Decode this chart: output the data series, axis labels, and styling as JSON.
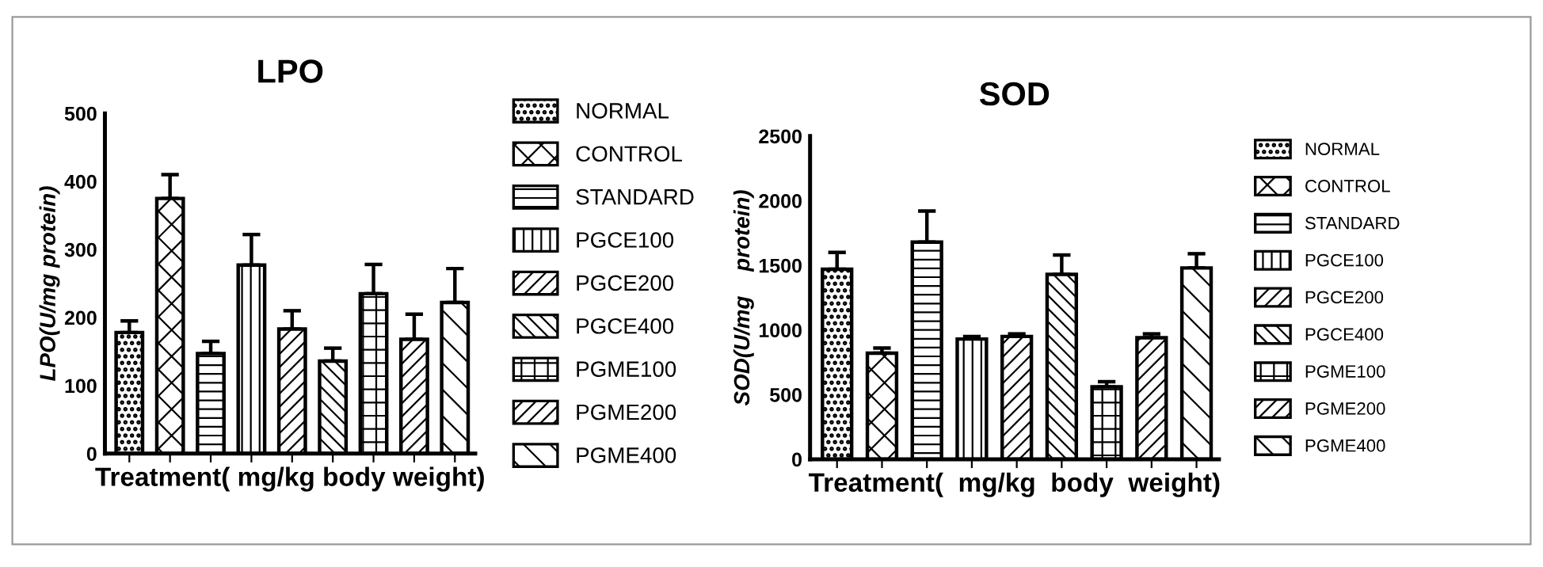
{
  "chart_data": [
    {
      "type": "bar",
      "title": "LPO",
      "xlabel": "Treatment( mg/kg body weight)",
      "ylabel": "LPO(U/mg protein)",
      "categories": [
        null,
        null,
        null,
        null,
        null,
        null,
        null,
        null,
        null
      ],
      "series": [
        {
          "name": "NORMAL",
          "color": "#000000",
          "values": [
            178,
            null,
            null,
            null,
            null,
            null,
            null,
            null,
            null
          ],
          "errors": [
            [
              178,
              195
            ],
            null,
            null,
            null,
            null,
            null,
            null,
            null,
            null
          ]
        },
        {
          "name": "CONTROL",
          "color": "#000000",
          "values": [
            null,
            375,
            null,
            null,
            null,
            null,
            null,
            null,
            null
          ],
          "errors": [
            null,
            [
              375,
              410
            ],
            null,
            null,
            null,
            null,
            null,
            null,
            null
          ]
        },
        {
          "name": "STANDARD",
          "color": "#000000",
          "values": [
            null,
            null,
            147,
            null,
            null,
            null,
            null,
            null,
            null
          ],
          "errors": [
            null,
            null,
            [
              147,
              165
            ],
            null,
            null,
            null,
            null,
            null,
            null
          ]
        },
        {
          "name": "PGCE100",
          "color": "#000000",
          "values": [
            null,
            null,
            null,
            277,
            null,
            null,
            null,
            null,
            null
          ],
          "errors": [
            null,
            null,
            null,
            [
              277,
              322
            ],
            null,
            null,
            null,
            null,
            null
          ]
        },
        {
          "name": "PGCE200",
          "color": "#000000",
          "values": [
            null,
            null,
            null,
            null,
            183,
            null,
            null,
            null,
            null
          ],
          "errors": [
            null,
            null,
            null,
            null,
            [
              183,
              210
            ],
            null,
            null,
            null,
            null
          ]
        },
        {
          "name": "PGCE400",
          "color": "#000000",
          "values": [
            null,
            null,
            null,
            null,
            null,
            136,
            null,
            null,
            null
          ],
          "errors": [
            null,
            null,
            null,
            null,
            null,
            [
              136,
              155
            ],
            null,
            null,
            null
          ]
        },
        {
          "name": "PGME100",
          "color": "#000000",
          "values": [
            null,
            null,
            null,
            null,
            null,
            null,
            235,
            null,
            null
          ],
          "errors": [
            null,
            null,
            null,
            null,
            null,
            null,
            [
              235,
              278
            ],
            null,
            null
          ]
        },
        {
          "name": "PGME200",
          "color": "#000000",
          "values": [
            null,
            null,
            null,
            null,
            null,
            null,
            null,
            168,
            null
          ],
          "errors": [
            null,
            null,
            null,
            null,
            null,
            null,
            null,
            [
              168,
              205
            ],
            null
          ]
        },
        {
          "name": "PGME400",
          "color": "#000000",
          "values": [
            null,
            null,
            null,
            null,
            null,
            null,
            null,
            null,
            222
          ],
          "errors": [
            null,
            null,
            null,
            null,
            null,
            null,
            null,
            null,
            [
              222,
              272
            ]
          ]
        }
      ],
      "ylim": [
        0,
        500
      ],
      "yticks": [
        0,
        100,
        200,
        300,
        400,
        500
      ],
      "grid": false,
      "legend": "right",
      "tick_labels": "y"
    },
    {
      "type": "bar",
      "title": "SOD",
      "xlabel": "Treatment(  mg/kg  body  weight)",
      "ylabel": "SOD(U/mg    protein)",
      "categories": [
        null,
        null,
        null,
        null,
        null,
        null,
        null,
        null,
        null
      ],
      "series": [
        {
          "name": "NORMAL",
          "color": "#000000",
          "values": [
            1470,
            null,
            null,
            null,
            null,
            null,
            null,
            null,
            null
          ],
          "errors": [
            [
              1470,
              1600
            ],
            null,
            null,
            null,
            null,
            null,
            null,
            null,
            null
          ]
        },
        {
          "name": "CONTROL",
          "color": "#000000",
          "values": [
            null,
            820,
            null,
            null,
            null,
            null,
            null,
            null,
            null
          ],
          "errors": [
            null,
            [
              820,
              860
            ],
            null,
            null,
            null,
            null,
            null,
            null,
            null
          ]
        },
        {
          "name": "STANDARD",
          "color": "#000000",
          "values": [
            null,
            null,
            1680,
            null,
            null,
            null,
            null,
            null,
            null
          ],
          "errors": [
            null,
            null,
            [
              1680,
              1920
            ],
            null,
            null,
            null,
            null,
            null,
            null
          ]
        },
        {
          "name": "PGCE100",
          "color": "#000000",
          "values": [
            null,
            null,
            null,
            930,
            null,
            null,
            null,
            null,
            null
          ],
          "errors": [
            null,
            null,
            null,
            [
              930,
              950
            ],
            null,
            null,
            null,
            null,
            null
          ]
        },
        {
          "name": "PGCE200",
          "color": "#000000",
          "values": [
            null,
            null,
            null,
            null,
            950,
            null,
            null,
            null,
            null
          ],
          "errors": [
            null,
            null,
            null,
            null,
            [
              950,
              970
            ],
            null,
            null,
            null,
            null
          ]
        },
        {
          "name": "PGCE400",
          "color": "#000000",
          "values": [
            null,
            null,
            null,
            null,
            null,
            1430,
            null,
            null,
            null
          ],
          "errors": [
            null,
            null,
            null,
            null,
            null,
            [
              1430,
              1580
            ],
            null,
            null,
            null
          ]
        },
        {
          "name": "PGME100",
          "color": "#000000",
          "values": [
            null,
            null,
            null,
            null,
            null,
            null,
            560,
            null,
            null
          ],
          "errors": [
            null,
            null,
            null,
            null,
            null,
            null,
            [
              560,
              600
            ],
            null,
            null
          ]
        },
        {
          "name": "PGME200",
          "color": "#000000",
          "values": [
            null,
            null,
            null,
            null,
            null,
            null,
            null,
            940,
            null
          ],
          "errors": [
            null,
            null,
            null,
            null,
            null,
            null,
            null,
            [
              940,
              970
            ],
            null
          ]
        },
        {
          "name": "PGME400",
          "color": "#000000",
          "values": [
            null,
            null,
            null,
            null,
            null,
            null,
            null,
            null,
            1480
          ],
          "errors": [
            null,
            null,
            null,
            null,
            null,
            null,
            null,
            null,
            [
              1480,
              1590
            ]
          ]
        }
      ],
      "ylim": [
        0,
        2500
      ],
      "yticks": [
        0,
        500,
        1000,
        1500,
        2000,
        2500
      ],
      "grid": false,
      "legend": "right",
      "tick_labels": "y"
    }
  ]
}
